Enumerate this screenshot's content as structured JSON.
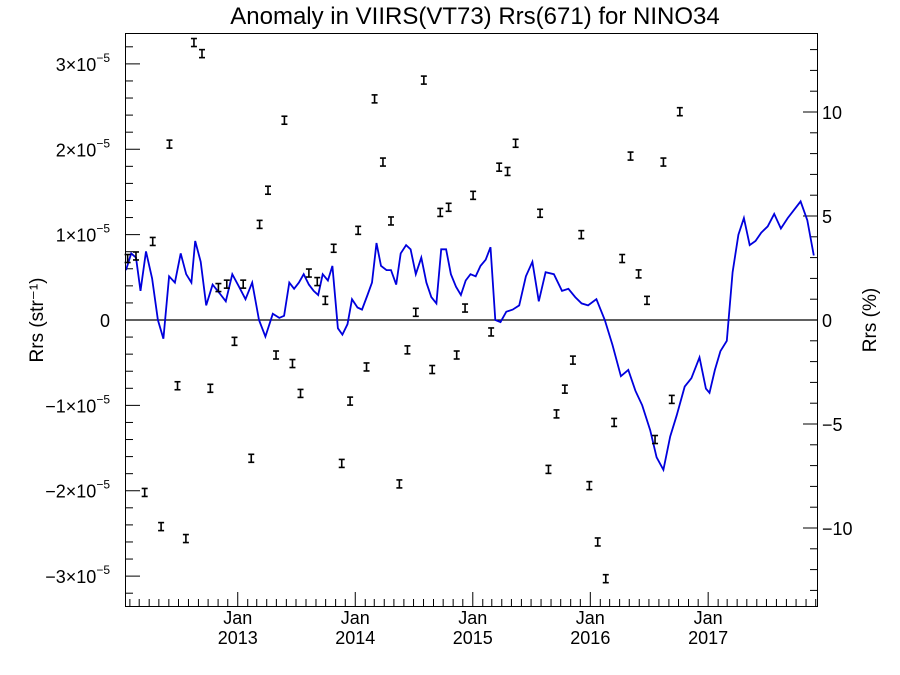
{
  "chart_data": {
    "type": "line",
    "title": "Anomaly in VIIRS(VT73) Rrs(671) for NINO34",
    "ylabel_left": "Rrs (str⁻¹)",
    "ylabel_right": "Rrs (%)",
    "xlim": [
      "2012-01-20",
      "2017-12-05"
    ],
    "ylim_left": [
      -3.35e-05,
      3.35e-05
    ],
    "ylim_right": [
      -13.75,
      13.75
    ],
    "x_ticks": [
      {
        "date": "2013-01-01",
        "month": "Jan",
        "year": "2013"
      },
      {
        "date": "2014-01-01",
        "month": "Jan",
        "year": "2014"
      },
      {
        "date": "2015-01-01",
        "month": "Jan",
        "year": "2015"
      },
      {
        "date": "2016-01-01",
        "month": "Jan",
        "year": "2016"
      },
      {
        "date": "2017-01-01",
        "month": "Jan",
        "year": "2017"
      }
    ],
    "y_ticks_left": [
      {
        "value": 3e-05,
        "mant": "3×10",
        "exp": "−5"
      },
      {
        "value": 2e-05,
        "mant": "2×10",
        "exp": "−5"
      },
      {
        "value": 1e-05,
        "mant": "1×10",
        "exp": "−5"
      },
      {
        "value": 0,
        "mant": "0",
        "exp": ""
      },
      {
        "value": -1e-05,
        "mant": "−1×10",
        "exp": "−5"
      },
      {
        "value": -2e-05,
        "mant": "−2×10",
        "exp": "−5"
      },
      {
        "value": -3e-05,
        "mant": "−3×10",
        "exp": "−5"
      }
    ],
    "y_ticks_right": [
      {
        "value": 10,
        "label": "10"
      },
      {
        "value": 5,
        "label": "5"
      },
      {
        "value": 0,
        "label": "0"
      },
      {
        "value": -5,
        "label": "−5"
      },
      {
        "value": -10,
        "label": "−10"
      }
    ],
    "zero_line": true,
    "series": [
      {
        "color": "#0000dd",
        "axis": "right",
        "style": "line",
        "points": [
          [
            "2012-01-20",
            2.4
          ],
          [
            "2012-02-05",
            3.2
          ],
          [
            "2012-02-20",
            3.0
          ],
          [
            "2012-03-05",
            1.4
          ],
          [
            "2012-03-22",
            3.3
          ],
          [
            "2012-04-10",
            2.0
          ],
          [
            "2012-04-28",
            0.0
          ],
          [
            "2012-05-15",
            -0.9
          ],
          [
            "2012-06-02",
            2.1
          ],
          [
            "2012-06-20",
            1.8
          ],
          [
            "2012-07-08",
            3.2
          ],
          [
            "2012-07-25",
            2.2
          ],
          [
            "2012-08-10",
            1.8
          ],
          [
            "2012-08-22",
            3.8
          ],
          [
            "2012-09-08",
            2.8
          ],
          [
            "2012-09-25",
            0.7
          ],
          [
            "2012-10-15",
            1.7
          ],
          [
            "2012-11-05",
            1.3
          ],
          [
            "2012-11-25",
            0.9
          ],
          [
            "2012-12-15",
            2.2
          ],
          [
            "2013-01-05",
            1.6
          ],
          [
            "2013-01-25",
            1.0
          ],
          [
            "2013-02-15",
            1.8
          ],
          [
            "2013-03-08",
            0.0
          ],
          [
            "2013-03-28",
            -0.8
          ],
          [
            "2013-04-20",
            0.3
          ],
          [
            "2013-05-10",
            0.1
          ],
          [
            "2013-05-25",
            0.2
          ],
          [
            "2013-06-10",
            1.8
          ],
          [
            "2013-06-25",
            1.5
          ],
          [
            "2013-07-10",
            1.8
          ],
          [
            "2013-07-25",
            2.2
          ],
          [
            "2013-08-10",
            1.7
          ],
          [
            "2013-08-25",
            1.4
          ],
          [
            "2013-09-08",
            1.2
          ],
          [
            "2013-09-22",
            2.2
          ],
          [
            "2013-10-08",
            1.9
          ],
          [
            "2013-10-22",
            2.6
          ],
          [
            "2013-11-08",
            -0.4
          ],
          [
            "2013-11-22",
            -0.7
          ],
          [
            "2013-12-08",
            -0.2
          ],
          [
            "2013-12-22",
            1.0
          ],
          [
            "2014-01-08",
            0.6
          ],
          [
            "2014-01-22",
            0.5
          ],
          [
            "2014-02-08",
            1.2
          ],
          [
            "2014-02-22",
            1.8
          ],
          [
            "2014-03-08",
            3.7
          ],
          [
            "2014-03-22",
            2.6
          ],
          [
            "2014-04-08",
            2.4
          ],
          [
            "2014-04-22",
            2.4
          ],
          [
            "2014-05-08",
            1.7
          ],
          [
            "2014-05-22",
            3.2
          ],
          [
            "2014-06-08",
            3.6
          ],
          [
            "2014-06-22",
            3.4
          ],
          [
            "2014-07-08",
            2.2
          ],
          [
            "2014-07-25",
            3.0
          ],
          [
            "2014-08-10",
            1.8
          ],
          [
            "2014-08-25",
            1.1
          ],
          [
            "2014-09-10",
            0.8
          ],
          [
            "2014-09-25",
            3.4
          ],
          [
            "2014-10-10",
            3.4
          ],
          [
            "2014-10-25",
            2.2
          ],
          [
            "2014-11-10",
            1.6
          ],
          [
            "2014-11-25",
            1.2
          ],
          [
            "2014-12-10",
            1.9
          ],
          [
            "2014-12-25",
            2.2
          ],
          [
            "2015-01-10",
            2.1
          ],
          [
            "2015-01-25",
            2.6
          ],
          [
            "2015-02-10",
            2.9
          ],
          [
            "2015-02-25",
            3.5
          ],
          [
            "2015-03-12",
            0.0
          ],
          [
            "2015-03-28",
            -0.1
          ],
          [
            "2015-04-15",
            0.4
          ],
          [
            "2015-05-05",
            0.5
          ],
          [
            "2015-05-25",
            0.7
          ],
          [
            "2015-06-15",
            2.1
          ],
          [
            "2015-07-05",
            2.8
          ],
          [
            "2015-07-25",
            0.9
          ],
          [
            "2015-08-15",
            2.3
          ],
          [
            "2015-09-10",
            2.2
          ],
          [
            "2015-10-05",
            1.4
          ],
          [
            "2015-10-25",
            1.5
          ],
          [
            "2015-11-15",
            1.1
          ],
          [
            "2015-12-05",
            0.8
          ],
          [
            "2015-12-25",
            0.7
          ],
          [
            "2016-01-20",
            1.0
          ],
          [
            "2016-02-15",
            0.0
          ],
          [
            "2016-03-10",
            -1.2
          ],
          [
            "2016-04-05",
            -2.7
          ],
          [
            "2016-04-28",
            -2.4
          ],
          [
            "2016-05-20",
            -3.4
          ],
          [
            "2016-06-10",
            -4.1
          ],
          [
            "2016-07-05",
            -5.3
          ],
          [
            "2016-07-25",
            -6.6
          ],
          [
            "2016-08-15",
            -7.2
          ],
          [
            "2016-09-05",
            -5.6
          ],
          [
            "2016-09-25",
            -4.6
          ],
          [
            "2016-10-20",
            -3.2
          ],
          [
            "2016-11-10",
            -2.8
          ],
          [
            "2016-12-05",
            -1.8
          ],
          [
            "2016-12-25",
            -3.3
          ],
          [
            "2017-01-05",
            -3.5
          ],
          [
            "2017-01-22",
            -2.4
          ],
          [
            "2017-02-08",
            -1.5
          ],
          [
            "2017-02-28",
            -1.0
          ],
          [
            "2017-03-18",
            2.3
          ],
          [
            "2017-04-05",
            4.1
          ],
          [
            "2017-04-22",
            4.9
          ],
          [
            "2017-05-10",
            3.6
          ],
          [
            "2017-05-28",
            3.8
          ],
          [
            "2017-06-15",
            4.2
          ],
          [
            "2017-07-05",
            4.5
          ],
          [
            "2017-07-25",
            5.1
          ],
          [
            "2017-08-15",
            4.4
          ],
          [
            "2017-09-05",
            4.9
          ],
          [
            "2017-09-25",
            5.3
          ],
          [
            "2017-10-15",
            5.7
          ],
          [
            "2017-11-05",
            4.8
          ],
          [
            "2017-11-25",
            3.1
          ]
        ]
      },
      {
        "color": "#000000",
        "axis": "left",
        "style": "error-bar",
        "points": [
          [
            "2012-01-25",
            7.2e-06
          ],
          [
            "2012-02-20",
            7.5e-06
          ],
          [
            "2012-03-18",
            -2.02e-05
          ],
          [
            "2012-04-12",
            9.2e-06
          ],
          [
            "2012-05-08",
            -2.42e-05
          ],
          [
            "2012-06-03",
            2.06e-05
          ],
          [
            "2012-06-28",
            -7.7e-06
          ],
          [
            "2012-07-24",
            -2.56e-05
          ],
          [
            "2012-08-18",
            3.25e-05
          ],
          [
            "2012-09-12",
            3.12e-05
          ],
          [
            "2012-10-08",
            -8e-06
          ],
          [
            "2012-11-02",
            3.8e-06
          ],
          [
            "2012-11-28",
            4.2e-06
          ],
          [
            "2012-12-22",
            -2.5e-06
          ],
          [
            "2013-01-18",
            4.2e-06
          ],
          [
            "2013-02-12",
            -1.62e-05
          ],
          [
            "2013-03-10",
            1.12e-05
          ],
          [
            "2013-04-05",
            1.52e-05
          ],
          [
            "2013-04-30",
            -4.1e-06
          ],
          [
            "2013-05-26",
            2.34e-05
          ],
          [
            "2013-06-20",
            -5.1e-06
          ],
          [
            "2013-07-15",
            -8.6e-06
          ],
          [
            "2013-08-10",
            5.5e-06
          ],
          [
            "2013-09-05",
            4.5e-06
          ],
          [
            "2013-09-30",
            2.3e-06
          ],
          [
            "2013-10-26",
            8.4e-06
          ],
          [
            "2013-11-20",
            -1.68e-05
          ],
          [
            "2013-12-16",
            -9.5e-06
          ],
          [
            "2014-01-10",
            1.05e-05
          ],
          [
            "2014-02-05",
            -5.5e-06
          ],
          [
            "2014-03-02",
            2.59e-05
          ],
          [
            "2014-03-28",
            1.85e-05
          ],
          [
            "2014-04-22",
            1.16e-05
          ],
          [
            "2014-05-18",
            -1.92e-05
          ],
          [
            "2014-06-12",
            -3.5e-06
          ],
          [
            "2014-07-08",
            9e-07
          ],
          [
            "2014-08-02",
            2.81e-05
          ],
          [
            "2014-08-28",
            -5.8e-06
          ],
          [
            "2014-09-22",
            1.26e-05
          ],
          [
            "2014-10-18",
            1.32e-05
          ],
          [
            "2014-11-12",
            -4.1e-06
          ],
          [
            "2014-12-08",
            1.4e-06
          ],
          [
            "2015-01-02",
            1.46e-05
          ],
          [
            "2015-02-27",
            -1.4e-06
          ],
          [
            "2015-03-24",
            1.79e-05
          ],
          [
            "2015-04-19",
            1.74e-05
          ],
          [
            "2015-05-14",
            2.07e-05
          ],
          [
            "2015-07-29",
            1.25e-05
          ],
          [
            "2015-08-24",
            -1.75e-05
          ],
          [
            "2015-09-18",
            -1.1e-05
          ],
          [
            "2015-10-14",
            -8.1e-06
          ],
          [
            "2015-11-08",
            -4.7e-06
          ],
          [
            "2015-12-04",
            1e-05
          ],
          [
            "2015-12-29",
            -1.94e-05
          ],
          [
            "2016-01-24",
            -2.6e-05
          ],
          [
            "2016-02-18",
            -3.03e-05
          ],
          [
            "2016-03-15",
            -1.2e-05
          ],
          [
            "2016-04-09",
            7.2e-06
          ],
          [
            "2016-05-05",
            1.92e-05
          ],
          [
            "2016-05-30",
            5.4e-06
          ],
          [
            "2016-06-25",
            2.3e-06
          ],
          [
            "2016-07-20",
            -1.4e-05
          ],
          [
            "2016-08-15",
            1.85e-05
          ],
          [
            "2016-09-10",
            -9.3e-06
          ],
          [
            "2016-10-05",
            2.44e-05
          ]
        ]
      }
    ]
  }
}
